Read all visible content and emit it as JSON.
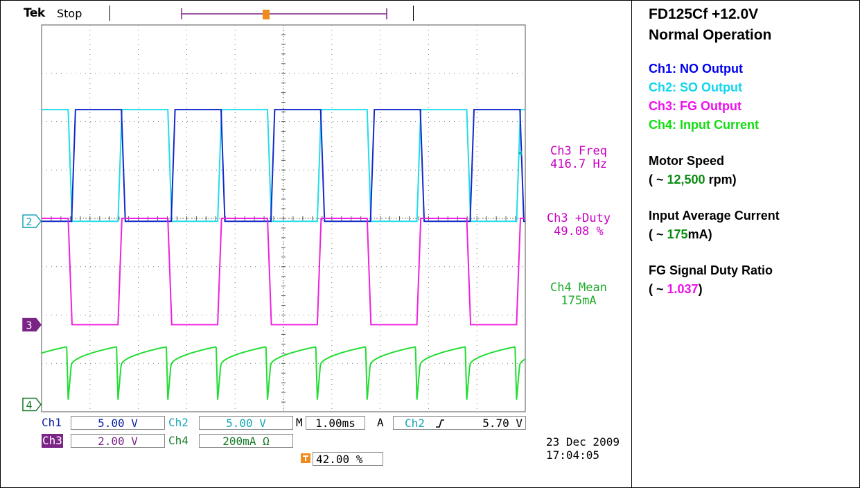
{
  "scope": {
    "brand": "Tek",
    "run_state": "Stop",
    "trigger_position_percent": 42.0,
    "trigger_position_label": "42.00 %",
    "date": "23 Dec 2009",
    "time": "17:04:05",
    "channel_markers": [
      "2",
      "3",
      "4"
    ],
    "measurements": [
      {
        "label": "Ch3 Freq",
        "value": "416.7 Hz",
        "channel": "ch3"
      },
      {
        "label": "Ch3 +Duty",
        "value": "49.08 %",
        "channel": "ch3"
      },
      {
        "label": "Ch4 Mean",
        "value": "175mA",
        "channel": "ch4"
      }
    ],
    "settings": {
      "ch1_label": "Ch1",
      "ch1_scale": "5.00 V",
      "ch2_label": "Ch2",
      "ch2_scale": "5.00 V",
      "ch3_label": "Ch3",
      "ch3_scale": "2.00 V",
      "ch4_label": "Ch4",
      "ch4_scale": "200mA Ω",
      "timebase_prefix": "M",
      "timebase": "1.00ms",
      "trigger_mode": "A",
      "trigger_source": "Ch2",
      "trigger_slope": "rising",
      "trigger_level": "5.70 V"
    },
    "colors": {
      "ch1": "#1428c8",
      "ch2": "#22dde8",
      "ch3": "#ee22dd",
      "ch4": "#22dd33",
      "grid": "#555555"
    }
  },
  "panel": {
    "title_line1": "FD125Cf +12.0V",
    "title_line2": "Normal Operation",
    "legend": [
      {
        "text": "Ch1: NO Output",
        "color": "#0000ee"
      },
      {
        "text": "Ch2: SO Output",
        "color": "#11d5ee"
      },
      {
        "text": "Ch3: FG Output",
        "color": "#ee10ee"
      },
      {
        "text": "Ch4: Input Current",
        "color": "#11dd11"
      }
    ],
    "speed_label": "Motor Speed",
    "speed_prefix": "( ~ ",
    "speed_value": "12,500",
    "speed_suffix": " rpm)",
    "current_label": "Input Average Current",
    "current_prefix": "( ~ ",
    "current_value": "175",
    "current_suffix": "mA)",
    "duty_label": "FG Signal Duty Ratio",
    "duty_prefix": "( ~ ",
    "duty_value": "1.037",
    "duty_suffix": ")"
  },
  "chart_data": {
    "type": "line",
    "x_unit": "divisions (1.00 ms/div)",
    "xlim": [
      0,
      10
    ],
    "ylim": [
      -4,
      4
    ],
    "grid": true,
    "series": [
      {
        "name": "Ch1: NO Output",
        "shape": "square",
        "period_div": 2.06,
        "duty": 0.5,
        "high_div": 2.25,
        "low_div": -0.06,
        "edges_rise_div": [
          0.62,
          2.68,
          4.74,
          6.8
        ]
      },
      {
        "name": "Ch2: SO Output",
        "shape": "square",
        "period_div": 2.06,
        "duty": 0.5,
        "high_div": 2.25,
        "low_div": -0.06,
        "edges_fall_div": [
          0.55,
          2.61,
          4.67,
          6.73
        ]
      },
      {
        "name": "Ch3: FG Output",
        "shape": "square",
        "period_div": 2.06,
        "duty": 0.5,
        "high_div": 0.0,
        "low_div": -2.2,
        "edges_fall_div": [
          0.55,
          2.61,
          4.67,
          6.73
        ]
      },
      {
        "name": "Ch4: Input Current",
        "shape": "ripple",
        "period_div": 1.03,
        "mean_mA": 175
      }
    ]
  }
}
